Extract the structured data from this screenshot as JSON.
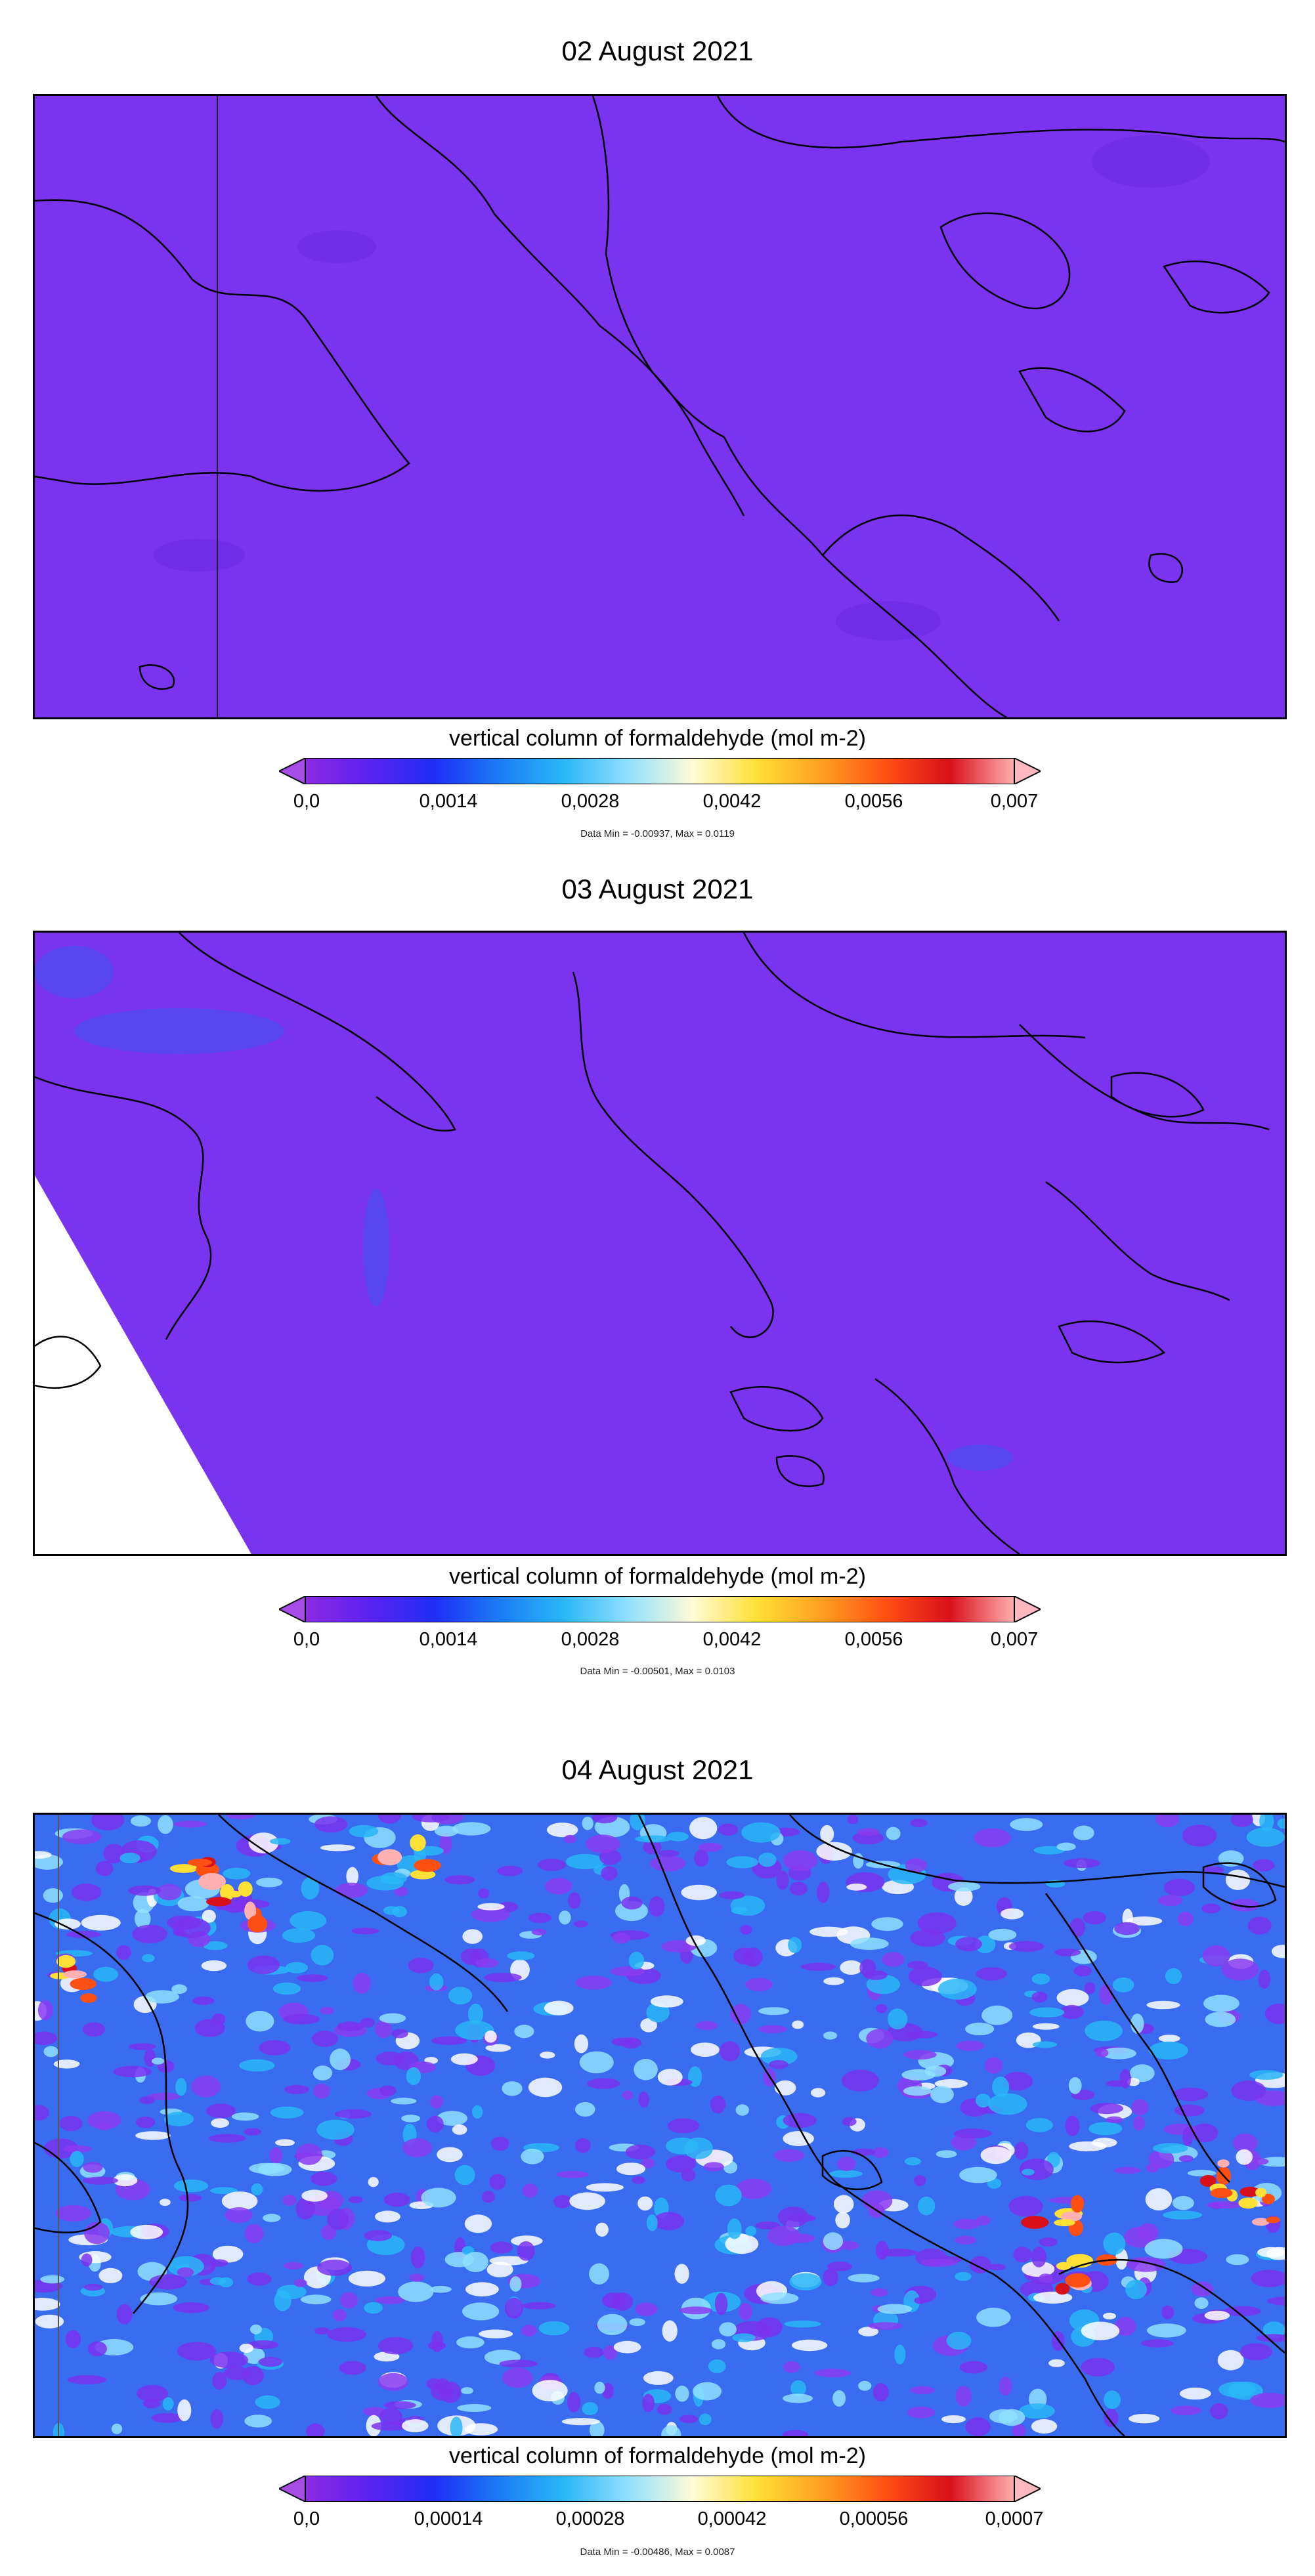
{
  "panels": [
    {
      "date": "02 August 2021",
      "colorbar_title": "vertical column of formaldehyde (mol m-2)",
      "ticks": [
        "0,0",
        "0,0014",
        "0,0028",
        "0,0042",
        "0,0056",
        "0,007"
      ],
      "data_range": "Data Min = -0.00937, Max = 0.0119"
    },
    {
      "date": "03 August 2021",
      "colorbar_title": "vertical column of formaldehyde (mol m-2)",
      "ticks": [
        "0,0",
        "0,0014",
        "0,0028",
        "0,0042",
        "0,0056",
        "0,007"
      ],
      "data_range": "Data Min = -0.00501, Max = 0.0103"
    },
    {
      "date": "04 August 2021",
      "colorbar_title": "vertical column of formaldehyde (mol m-2)",
      "ticks": [
        "0,0",
        "0,00014",
        "0,00028",
        "0,00042",
        "0,00056",
        "0,0007"
      ],
      "data_range": "Data Min = -0.00486, Max = 0.0087"
    }
  ],
  "colorbar_colors": [
    "#8a2be2",
    "#5a22f0",
    "#1f2ef5",
    "#1c7bf5",
    "#29b6f6",
    "#8fe0ff",
    "#fffbd6",
    "#ffe036",
    "#ffa020",
    "#ff5014",
    "#d8101a",
    "#ffb0b0"
  ],
  "under_color": "#a64de8",
  "over_color": "#ffb8c0",
  "map_base_color": "#7a33ee",
  "coastline_color": "#000000"
}
